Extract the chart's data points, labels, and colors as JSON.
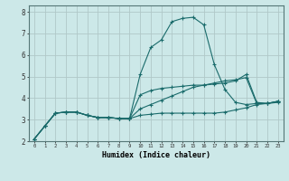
{
  "xlabel": "Humidex (Indice chaleur)",
  "bg_color": "#cce8e8",
  "grid_color": "#b0c8c8",
  "line_color": "#1a6b6b",
  "xlim": [
    -0.5,
    23.5
  ],
  "ylim": [
    2.0,
    8.3
  ],
  "xticks": [
    0,
    1,
    2,
    3,
    4,
    5,
    6,
    7,
    8,
    9,
    10,
    11,
    12,
    13,
    14,
    15,
    16,
    17,
    18,
    19,
    20,
    21,
    22,
    23
  ],
  "yticks": [
    2,
    3,
    4,
    5,
    6,
    7,
    8
  ],
  "curve1_x": [
    0,
    1,
    2,
    3,
    4,
    5,
    6,
    7,
    8,
    9,
    10,
    11,
    12,
    13,
    14,
    15,
    16,
    17,
    18,
    19,
    20,
    21,
    22,
    23
  ],
  "curve1_y": [
    2.1,
    2.7,
    3.3,
    3.35,
    3.35,
    3.2,
    3.1,
    3.1,
    3.05,
    3.05,
    3.2,
    3.25,
    3.3,
    3.3,
    3.3,
    3.3,
    3.3,
    3.3,
    3.35,
    3.45,
    3.55,
    3.7,
    3.75,
    3.8
  ],
  "curve2_x": [
    0,
    1,
    2,
    3,
    4,
    5,
    6,
    7,
    8,
    9,
    10,
    11,
    12,
    13,
    14,
    15,
    16,
    17,
    18,
    19,
    20,
    21,
    22,
    23
  ],
  "curve2_y": [
    2.1,
    2.7,
    3.3,
    3.35,
    3.35,
    3.2,
    3.1,
    3.1,
    3.05,
    3.05,
    5.1,
    6.35,
    6.7,
    7.55,
    7.7,
    7.75,
    7.4,
    5.55,
    4.4,
    3.8,
    3.7,
    3.75,
    3.75,
    3.85
  ],
  "curve3_x": [
    0,
    1,
    2,
    3,
    4,
    5,
    6,
    7,
    8,
    9,
    10,
    11,
    12,
    13,
    14,
    15,
    16,
    17,
    18,
    19,
    20,
    21,
    22,
    23
  ],
  "curve3_y": [
    2.1,
    2.7,
    3.3,
    3.35,
    3.35,
    3.2,
    3.1,
    3.1,
    3.05,
    3.05,
    4.15,
    4.35,
    4.45,
    4.5,
    4.55,
    4.6,
    4.6,
    4.65,
    4.7,
    4.8,
    5.1,
    3.8,
    3.75,
    3.85
  ],
  "curve4_x": [
    0,
    1,
    2,
    3,
    4,
    5,
    6,
    7,
    8,
    9,
    10,
    11,
    12,
    13,
    14,
    15,
    16,
    17,
    18,
    19,
    20,
    21,
    22,
    23
  ],
  "curve4_y": [
    2.1,
    2.7,
    3.3,
    3.35,
    3.35,
    3.2,
    3.1,
    3.1,
    3.05,
    3.05,
    3.5,
    3.7,
    3.9,
    4.1,
    4.3,
    4.5,
    4.6,
    4.7,
    4.8,
    4.85,
    4.95,
    3.75,
    3.75,
    3.85
  ]
}
